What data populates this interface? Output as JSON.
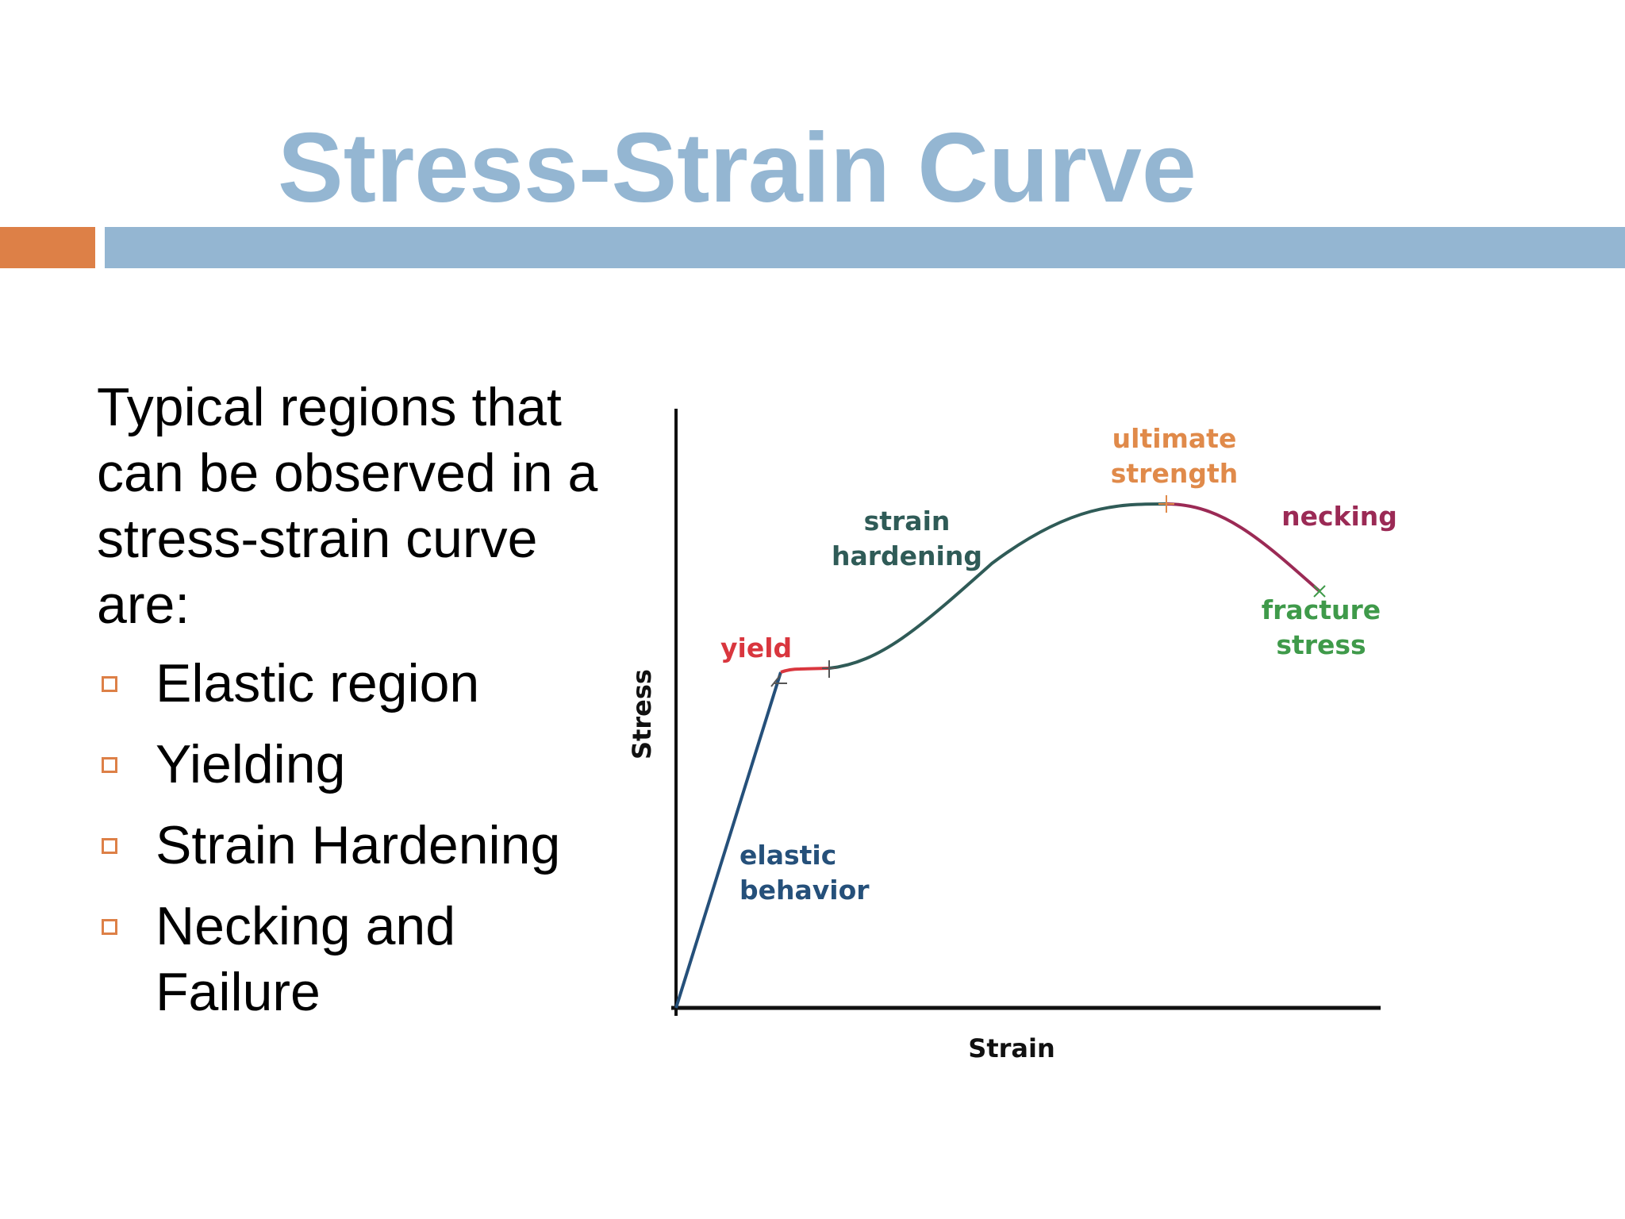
{
  "slide": {
    "title": "Stress-Strain Curve",
    "intro": "Typical regions that can be observed in a stress-strain curve are:",
    "bullets": [
      {
        "label": "Elastic region",
        "icon": "square-bullet-icon"
      },
      {
        "label": "Yielding",
        "icon": "square-bullet-icon"
      },
      {
        "label": "Strain Hardening",
        "icon": "square-bullet-icon"
      },
      {
        "label": "Necking and Failure",
        "icon": "square-bullet-icon"
      }
    ]
  },
  "colors": {
    "title": "#94b6d2",
    "accent_bar": "#dd8047",
    "rule_bar": "#94b6d2",
    "elastic": "#25507a",
    "yield": "#d9363e",
    "hardening": "#2f5b57",
    "ultimate": "#e08a4a",
    "necking": "#9b2a55",
    "fracture": "#3f9a4a"
  },
  "figure": {
    "xlabel": "Strain",
    "ylabel": "Stress",
    "labels": {
      "elastic": [
        "elastic",
        "behavior"
      ],
      "yield": [
        "yield"
      ],
      "hardening": [
        "strain",
        "hardening"
      ],
      "ultimate": [
        "ultimate",
        "strength"
      ],
      "necking": [
        "necking"
      ],
      "fracture": [
        "fracture",
        "stress"
      ]
    }
  }
}
